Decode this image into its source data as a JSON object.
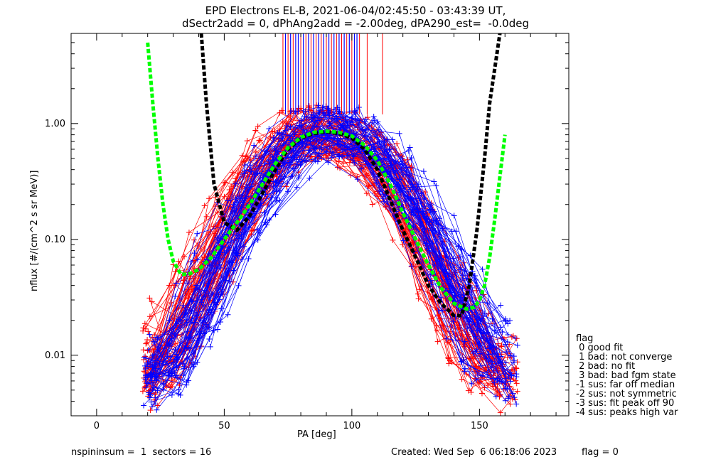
{
  "title_line1": "EPD Electrons EL-B, 2021-06-04/02:45:50 - 03:43:39 UT,",
  "title_line2": "dSectr2add = 0, dPhAng2add = -2.00deg, dPA290_est=  -0.0deg",
  "footer": {
    "left": "nspininsum =  1  sectors = 16",
    "created": "Created: Wed Sep  6 06:18:06 2023",
    "flag": "flag = 0"
  },
  "legend": {
    "heading": "flag",
    "items": [
      " 0 good fit",
      " 1 bad: not converge",
      " 2 bad: no fit",
      " 3 bad: bad fgm state",
      "-1 sus: far off median",
      "-2 sus: not symmetric",
      "-3 sus: fit peak off 90",
      "-4 sus: peaks high var"
    ]
  },
  "chart_data": {
    "type": "line",
    "xlabel": "PA [deg]",
    "ylabel": "nflux [#/(cm^2 s sr MeV)]",
    "xlim": [
      -10,
      185
    ],
    "ylim": [
      0.003,
      6.0
    ],
    "yscale": "log",
    "x_ticks": [
      0,
      50,
      100,
      150
    ],
    "x_tick_labels": [
      "0",
      "50",
      "100",
      "150"
    ],
    "y_ticks": [
      0.01,
      0.1,
      1.0
    ],
    "y_tick_labels": [
      "0.01",
      "0.10",
      "1.00"
    ],
    "colors": {
      "red": "#ff0000",
      "blue": "#0000ff",
      "green": "#00ff00",
      "black": "#000000"
    },
    "black_fit_curve": {
      "x": [
        41,
        43,
        46,
        50,
        55,
        60,
        65,
        70,
        75,
        80,
        85,
        90,
        95,
        100,
        105,
        110,
        115,
        120,
        125,
        130,
        135,
        140,
        143,
        146,
        149,
        152,
        154,
        156,
        158
      ],
      "y": [
        6.0,
        1.5,
        0.3,
        0.14,
        0.12,
        0.16,
        0.25,
        0.4,
        0.6,
        0.75,
        0.82,
        0.85,
        0.82,
        0.75,
        0.6,
        0.4,
        0.22,
        0.12,
        0.07,
        0.04,
        0.028,
        0.022,
        0.022,
        0.04,
        0.12,
        0.5,
        1.5,
        3.0,
        6.0
      ]
    },
    "green_fit_curve": {
      "x": [
        20,
        22,
        24,
        26,
        28,
        30,
        33,
        36,
        40,
        45,
        50,
        55,
        60,
        65,
        70,
        75,
        80,
        85,
        90,
        95,
        100,
        105,
        110,
        115,
        120,
        125,
        130,
        135,
        140,
        145,
        148,
        150,
        152,
        154,
        156,
        158,
        160
      ],
      "y": [
        5.0,
        1.5,
        0.5,
        0.2,
        0.1,
        0.065,
        0.05,
        0.05,
        0.055,
        0.07,
        0.1,
        0.14,
        0.2,
        0.3,
        0.45,
        0.62,
        0.76,
        0.84,
        0.86,
        0.84,
        0.78,
        0.65,
        0.48,
        0.3,
        0.17,
        0.1,
        0.06,
        0.038,
        0.028,
        0.025,
        0.026,
        0.03,
        0.04,
        0.07,
        0.15,
        0.35,
        0.8
      ]
    },
    "red_vertical_lines_x": [
      73,
      75,
      77,
      80,
      82,
      84,
      86,
      88,
      90,
      92,
      94,
      96,
      98,
      100,
      103,
      106,
      112
    ],
    "blue_vertical_lines_x": [
      74,
      76,
      78,
      79,
      81,
      83,
      85,
      87,
      89,
      91,
      93,
      95,
      97,
      99,
      101,
      102
    ],
    "vertical_lines_ylim": [
      1.2,
      6.0
    ]
  }
}
